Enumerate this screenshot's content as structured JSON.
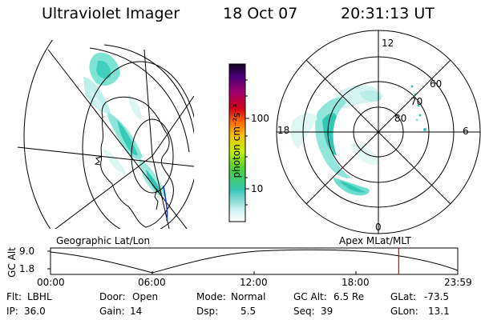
{
  "header": {
    "instrument": "Ultraviolet Imager",
    "date": "18 Oct 07",
    "time": "20:31:13 UT"
  },
  "colorbar": {
    "unit_label": "photon cm⁻²s⁻¹",
    "ticks": [
      "100",
      "10"
    ]
  },
  "polar_plot": {
    "mlt_labels": [
      "12",
      "6",
      "0",
      "18"
    ],
    "lat_labels": [
      "60",
      "70",
      "80"
    ]
  },
  "map_labels": {
    "geographic": "Geographic Lat/Lon",
    "apex": "Apex MLat/MLT"
  },
  "altitude_plot": {
    "ylabel": "GC Alt",
    "yticks": [
      "9.0",
      "1.8"
    ],
    "xticks": [
      "00:00",
      "06:00",
      "12:00",
      "18:00",
      "23:59"
    ],
    "current_marker_hour": 20.52
  },
  "info": {
    "row1": [
      {
        "label": "Flt:",
        "value": "LBHL"
      },
      {
        "label": "Door:",
        "value": "Open"
      },
      {
        "label": "Mode:",
        "value": "Normal"
      },
      {
        "label": "GC Alt:",
        "value": "6.5 Re"
      },
      {
        "label": "GLat:",
        "value": "-73.5"
      }
    ],
    "row2": [
      {
        "label": "IP:",
        "value": "36.0"
      },
      {
        "label": "Gain:",
        "value": "14"
      },
      {
        "label": "Dsp:",
        "value": "5.5"
      },
      {
        "label": "Seq:",
        "value": "39"
      },
      {
        "label": "GLon:",
        "value": "13.1"
      }
    ]
  },
  "colors": {
    "marker": "#e00000",
    "aurora_light": "#a8ede4",
    "aurora_mid": "#5fd6c4",
    "aurora_bright": "#30c9b8"
  }
}
